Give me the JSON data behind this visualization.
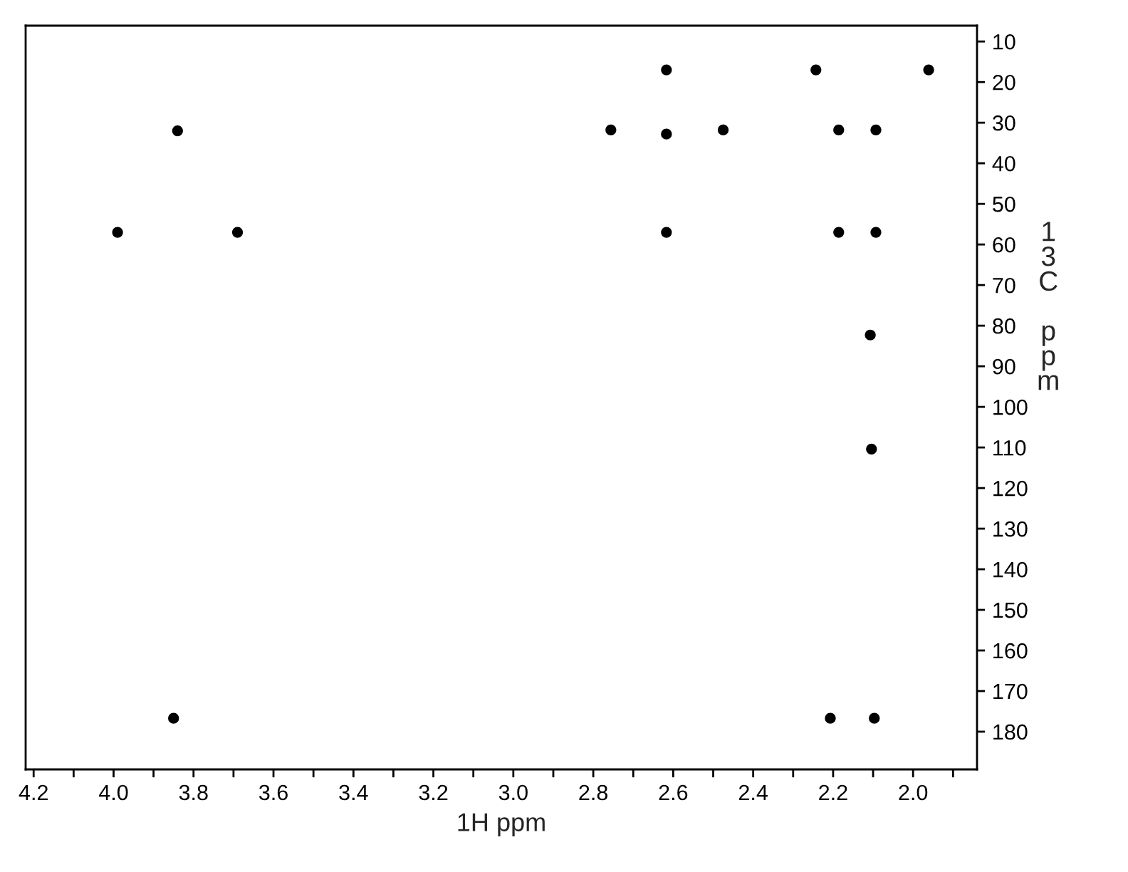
{
  "chart_data": {
    "type": "scatter",
    "xlabel": "1H ppm",
    "ylabel": "13C ppm",
    "x": [
      2.617,
      2.243,
      1.961,
      3.84,
      2.756,
      2.617,
      2.475,
      2.186,
      2.093,
      3.99,
      3.69,
      2.617,
      2.186,
      2.093,
      2.107,
      2.104,
      3.85,
      2.207,
      2.097
    ],
    "values": [
      17.0,
      17.0,
      17.0,
      32,
      31.8,
      32.8,
      31.8,
      31.8,
      31.8,
      57.0,
      57.0,
      57.0,
      57.0,
      57.0,
      82.3,
      110.4,
      176.7,
      176.7,
      176.7
    ],
    "color": "#000000",
    "marker": "circle",
    "grid": false,
    "xlim": [
      4.22,
      1.84
    ],
    "ylim": [
      189.3,
      6.1
    ],
    "xticks": [
      4.2,
      {
        "value": 4.1,
        "label": null
      },
      {
        "value": 4.0,
        "label": "4.0"
      },
      {
        "value": 3.9,
        "label": null
      },
      3.8,
      {
        "value": 3.7,
        "label": null
      },
      3.6,
      {
        "value": 3.5,
        "label": null
      },
      3.4,
      {
        "value": 3.3,
        "label": null
      },
      3.2,
      {
        "value": 3.1,
        "label": null
      },
      {
        "value": 3.0,
        "label": "3.0"
      },
      {
        "value": 2.9,
        "label": null
      },
      2.8,
      {
        "value": 2.7,
        "label": null
      },
      2.6,
      {
        "value": 2.5,
        "label": null
      },
      2.4,
      {
        "value": 2.3,
        "label": null
      },
      2.2,
      {
        "value": 2.1,
        "label": null
      },
      {
        "value": 2.0,
        "label": "2.0"
      },
      {
        "value": 1.9,
        "label": null
      }
    ],
    "yticks": [
      10,
      20,
      30,
      40,
      50,
      60,
      70,
      80,
      90,
      100,
      110,
      120,
      130,
      140,
      150,
      160,
      170,
      180
    ]
  }
}
